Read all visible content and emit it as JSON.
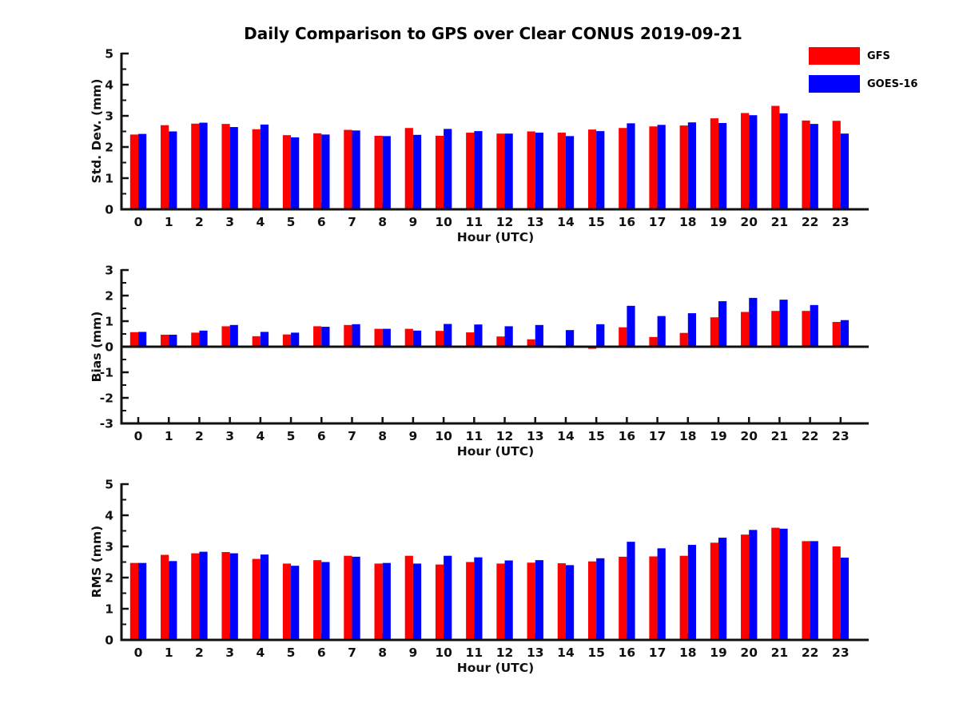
{
  "title": "Daily Comparison to GPS over Clear CONUS 2019-09-21",
  "legend": {
    "position": "top-right",
    "items": [
      {
        "label": "GFS",
        "color": "#ff0000"
      },
      {
        "label": "GOES-16",
        "color": "#0000ff"
      }
    ]
  },
  "chart_data": [
    {
      "type": "bar",
      "title": "Daily Comparison to GPS over Clear CONUS 2019-09-21",
      "ylabel": "Std. Dev. (mm)",
      "xlabel": "Hour (UTC)",
      "ylim": [
        0,
        5
      ],
      "yticks": [
        0,
        1,
        2,
        3,
        4,
        5
      ],
      "minor_ticks": true,
      "grid": false,
      "categories": [
        "0",
        "1",
        "2",
        "3",
        "4",
        "5",
        "6",
        "7",
        "8",
        "9",
        "10",
        "11",
        "12",
        "13",
        "14",
        "15",
        "16",
        "17",
        "18",
        "19",
        "20",
        "21",
        "22",
        "23"
      ],
      "series": [
        {
          "name": "GFS",
          "color": "#ff0000",
          "values": [
            2.4,
            2.7,
            2.75,
            2.74,
            2.57,
            2.38,
            2.44,
            2.55,
            2.36,
            2.61,
            2.36,
            2.46,
            2.43,
            2.5,
            2.46,
            2.56,
            2.61,
            2.66,
            2.69,
            2.92,
            3.09,
            3.32,
            2.85,
            2.84
          ]
        },
        {
          "name": "GOES-16",
          "color": "#0000ff",
          "values": [
            2.42,
            2.5,
            2.78,
            2.64,
            2.72,
            2.31,
            2.4,
            2.53,
            2.35,
            2.39,
            2.58,
            2.51,
            2.43,
            2.46,
            2.35,
            2.51,
            2.76,
            2.71,
            2.79,
            2.77,
            3.02,
            3.08,
            2.74,
            2.43
          ]
        }
      ]
    },
    {
      "type": "bar",
      "ylabel": "Bias (mm)",
      "xlabel": "Hour (UTC)",
      "ylim": [
        -3,
        3
      ],
      "yticks": [
        -3,
        -2,
        -1,
        0,
        1,
        2,
        3
      ],
      "minor_ticks": true,
      "grid": false,
      "categories": [
        "0",
        "1",
        "2",
        "3",
        "4",
        "5",
        "6",
        "7",
        "8",
        "9",
        "10",
        "11",
        "12",
        "13",
        "14",
        "15",
        "16",
        "17",
        "18",
        "19",
        "20",
        "21",
        "22",
        "23"
      ],
      "series": [
        {
          "name": "GFS",
          "color": "#ff0000",
          "values": [
            0.57,
            0.47,
            0.55,
            0.8,
            0.41,
            0.48,
            0.8,
            0.85,
            0.7,
            0.7,
            0.62,
            0.56,
            0.4,
            0.29,
            -0.05,
            -0.08,
            0.76,
            0.38,
            0.54,
            1.15,
            1.36,
            1.4,
            1.4,
            0.97
          ]
        },
        {
          "name": "GOES-16",
          "color": "#0000ff",
          "values": [
            0.58,
            0.47,
            0.63,
            0.85,
            0.58,
            0.55,
            0.78,
            0.88,
            0.7,
            0.63,
            0.89,
            0.87,
            0.8,
            0.85,
            0.65,
            0.88,
            1.6,
            1.2,
            1.31,
            1.78,
            1.91,
            1.84,
            1.63,
            1.04
          ]
        }
      ]
    },
    {
      "type": "bar",
      "ylabel": "RMS (mm)",
      "xlabel": "Hour (UTC)",
      "ylim": [
        0,
        5
      ],
      "yticks": [
        0,
        1,
        2,
        3,
        4,
        5
      ],
      "minor_ticks": true,
      "grid": false,
      "categories": [
        "0",
        "1",
        "2",
        "3",
        "4",
        "5",
        "6",
        "7",
        "8",
        "9",
        "10",
        "11",
        "12",
        "13",
        "14",
        "15",
        "16",
        "17",
        "18",
        "19",
        "20",
        "21",
        "22",
        "23"
      ],
      "series": [
        {
          "name": "GFS",
          "color": "#ff0000",
          "values": [
            2.47,
            2.73,
            2.78,
            2.82,
            2.6,
            2.45,
            2.56,
            2.7,
            2.45,
            2.7,
            2.42,
            2.5,
            2.45,
            2.48,
            2.46,
            2.52,
            2.67,
            2.68,
            2.7,
            3.12,
            3.38,
            3.6,
            3.17,
            3.0
          ]
        },
        {
          "name": "GOES-16",
          "color": "#0000ff",
          "values": [
            2.47,
            2.53,
            2.83,
            2.78,
            2.74,
            2.38,
            2.5,
            2.67,
            2.47,
            2.45,
            2.7,
            2.65,
            2.55,
            2.56,
            2.4,
            2.62,
            3.15,
            2.94,
            3.05,
            3.28,
            3.53,
            3.57,
            3.17,
            2.64
          ]
        }
      ]
    }
  ]
}
